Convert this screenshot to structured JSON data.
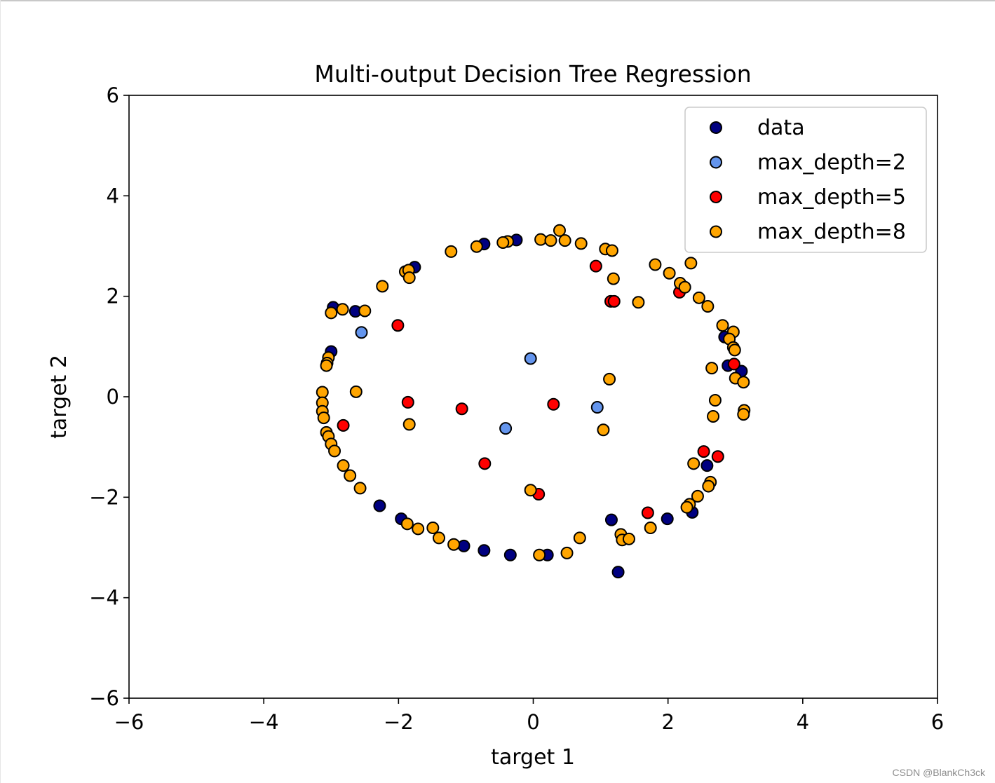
{
  "chart_data": {
    "type": "scatter",
    "title": "Multi-output Decision Tree Regression",
    "xlabel": "target 1",
    "ylabel": "target 2",
    "xlim": [
      -6,
      6
    ],
    "ylim": [
      -6,
      6
    ],
    "xticks": [
      -6,
      -4,
      -2,
      0,
      2,
      4,
      6
    ],
    "yticks": [
      -6,
      -4,
      -2,
      0,
      2,
      4,
      6
    ],
    "legend_position": "top-right",
    "series": [
      {
        "name": "data",
        "color": "#000080",
        "points": [
          [
            -0.73,
            3.04
          ],
          [
            -0.25,
            3.12
          ],
          [
            -1.76,
            2.58
          ],
          [
            -2.97,
            1.78
          ],
          [
            -2.64,
            1.7
          ],
          [
            -3.0,
            0.9
          ],
          [
            3.09,
            0.51
          ],
          [
            2.89,
            0.62
          ],
          [
            2.58,
            -1.37
          ],
          [
            2.36,
            -2.3
          ],
          [
            1.99,
            -2.43
          ],
          [
            1.16,
            -2.45
          ],
          [
            1.26,
            -3.49
          ],
          [
            0.21,
            -3.15
          ],
          [
            -0.34,
            -3.15
          ],
          [
            -0.73,
            -3.06
          ],
          [
            -1.03,
            -2.97
          ],
          [
            -1.96,
            -2.43
          ],
          [
            -2.28,
            -2.17
          ],
          [
            2.84,
            1.19
          ]
        ]
      },
      {
        "name": "max_depth=2",
        "color": "#6495ed",
        "points": [
          [
            -2.55,
            1.28
          ],
          [
            -0.04,
            0.76
          ],
          [
            0.95,
            -0.21
          ],
          [
            -0.41,
            -0.63
          ]
        ]
      },
      {
        "name": "max_depth=5",
        "color": "#ff0000",
        "points": [
          [
            0.93,
            2.6
          ],
          [
            2.17,
            2.08
          ],
          [
            1.15,
            1.9
          ],
          [
            1.2,
            1.9
          ],
          [
            -2.01,
            1.42
          ],
          [
            2.98,
            0.65
          ],
          [
            -1.86,
            -0.11
          ],
          [
            -1.06,
            -0.24
          ],
          [
            0.3,
            -0.15
          ],
          [
            -2.82,
            -0.57
          ],
          [
            -0.72,
            -1.33
          ],
          [
            2.53,
            -1.09
          ],
          [
            2.74,
            -1.19
          ],
          [
            0.08,
            -1.94
          ],
          [
            1.7,
            -2.31
          ]
        ]
      },
      {
        "name": "max_depth=8",
        "color": "#ffa500",
        "points": [
          [
            0.39,
            3.31
          ],
          [
            0.11,
            3.13
          ],
          [
            0.26,
            3.11
          ],
          [
            0.47,
            3.11
          ],
          [
            0.71,
            3.05
          ],
          [
            -0.38,
            3.09
          ],
          [
            -0.45,
            3.07
          ],
          [
            -0.84,
            2.99
          ],
          [
            -1.22,
            2.89
          ],
          [
            1.07,
            2.94
          ],
          [
            1.17,
            2.91
          ],
          [
            -1.9,
            2.49
          ],
          [
            -1.85,
            2.52
          ],
          [
            -1.84,
            2.37
          ],
          [
            -2.24,
            2.2
          ],
          [
            1.19,
            2.35
          ],
          [
            1.81,
            2.63
          ],
          [
            2.02,
            2.46
          ],
          [
            2.18,
            2.26
          ],
          [
            2.25,
            2.18
          ],
          [
            2.34,
            2.66
          ],
          [
            2.46,
            1.97
          ],
          [
            2.59,
            1.8
          ],
          [
            1.56,
            1.88
          ],
          [
            -2.5,
            1.71
          ],
          [
            -2.83,
            1.74
          ],
          [
            -3.0,
            1.67
          ],
          [
            2.81,
            1.42
          ],
          [
            2.97,
            1.29
          ],
          [
            2.91,
            1.15
          ],
          [
            2.97,
            0.98
          ],
          [
            2.99,
            0.93
          ],
          [
            -3.04,
            0.78
          ],
          [
            -3.06,
            0.67
          ],
          [
            -3.07,
            0.62
          ],
          [
            2.65,
            0.57
          ],
          [
            3.0,
            0.37
          ],
          [
            3.12,
            0.29
          ],
          [
            1.13,
            0.35
          ],
          [
            -3.13,
            0.09
          ],
          [
            -2.63,
            0.1
          ],
          [
            -3.13,
            -0.12
          ],
          [
            -3.13,
            -0.29
          ],
          [
            -3.11,
            -0.42
          ],
          [
            3.13,
            -0.27
          ],
          [
            3.12,
            -0.35
          ],
          [
            2.7,
            -0.07
          ],
          [
            2.67,
            -0.39
          ],
          [
            -1.84,
            -0.55
          ],
          [
            1.04,
            -0.66
          ],
          [
            -3.07,
            -0.71
          ],
          [
            -3.04,
            -0.79
          ],
          [
            -3.0,
            -0.94
          ],
          [
            -2.95,
            -1.08
          ],
          [
            -2.82,
            -1.37
          ],
          [
            -2.72,
            -1.57
          ],
          [
            -2.57,
            -1.82
          ],
          [
            2.38,
            -1.33
          ],
          [
            2.63,
            -1.7
          ],
          [
            2.6,
            -1.78
          ],
          [
            2.44,
            -1.98
          ],
          [
            2.32,
            -2.14
          ],
          [
            2.28,
            -2.2
          ],
          [
            1.74,
            -2.61
          ],
          [
            1.3,
            -2.74
          ],
          [
            1.32,
            -2.85
          ],
          [
            1.42,
            -2.83
          ],
          [
            0.69,
            -2.81
          ],
          [
            0.5,
            -3.11
          ],
          [
            0.09,
            -3.15
          ],
          [
            -0.04,
            -1.86
          ],
          [
            -1.87,
            -2.53
          ],
          [
            -1.71,
            -2.63
          ],
          [
            -1.49,
            -2.61
          ],
          [
            -1.4,
            -2.81
          ],
          [
            -1.18,
            -2.94
          ]
        ]
      }
    ]
  },
  "watermark": "CSDN @BlankCh3ck"
}
